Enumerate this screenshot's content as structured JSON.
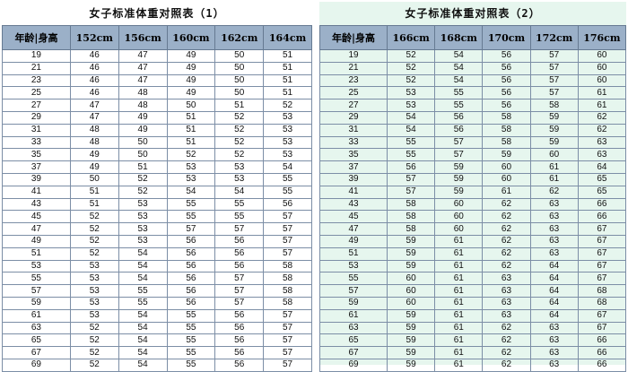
{
  "tables": [
    {
      "title": "女子标准体重对照表（1）",
      "header_age": "年龄|身高",
      "heights": [
        "152cm",
        "156cm",
        "160cm",
        "162cm",
        "164cm"
      ],
      "rows": [
        [
          "19",
          "46",
          "47",
          "49",
          "50",
          "51"
        ],
        [
          "21",
          "46",
          "47",
          "49",
          "50",
          "51"
        ],
        [
          "23",
          "46",
          "47",
          "49",
          "50",
          "51"
        ],
        [
          "25",
          "46",
          "48",
          "49",
          "50",
          "51"
        ],
        [
          "27",
          "47",
          "48",
          "50",
          "51",
          "52"
        ],
        [
          "29",
          "47",
          "49",
          "51",
          "52",
          "53"
        ],
        [
          "31",
          "48",
          "49",
          "51",
          "52",
          "53"
        ],
        [
          "33",
          "48",
          "50",
          "51",
          "52",
          "53"
        ],
        [
          "35",
          "49",
          "50",
          "52",
          "52",
          "53"
        ],
        [
          "37",
          "49",
          "51",
          "53",
          "53",
          "54"
        ],
        [
          "39",
          "50",
          "52",
          "53",
          "53",
          "55"
        ],
        [
          "41",
          "51",
          "52",
          "54",
          "54",
          "55"
        ],
        [
          "43",
          "51",
          "53",
          "55",
          "55",
          "56"
        ],
        [
          "45",
          "52",
          "53",
          "55",
          "55",
          "57"
        ],
        [
          "47",
          "52",
          "53",
          "57",
          "57",
          "57"
        ],
        [
          "49",
          "52",
          "53",
          "56",
          "56",
          "57"
        ],
        [
          "51",
          "52",
          "54",
          "56",
          "56",
          "57"
        ],
        [
          "53",
          "53",
          "54",
          "56",
          "56",
          "58"
        ],
        [
          "55",
          "53",
          "54",
          "56",
          "57",
          "58"
        ],
        [
          "57",
          "53",
          "55",
          "56",
          "57",
          "58"
        ],
        [
          "59",
          "53",
          "55",
          "56",
          "57",
          "58"
        ],
        [
          "61",
          "53",
          "54",
          "55",
          "56",
          "57"
        ],
        [
          "63",
          "52",
          "54",
          "55",
          "56",
          "57"
        ],
        [
          "65",
          "52",
          "54",
          "55",
          "56",
          "57"
        ],
        [
          "67",
          "52",
          "54",
          "55",
          "56",
          "57"
        ],
        [
          "69",
          "52",
          "54",
          "55",
          "56",
          "57"
        ]
      ]
    },
    {
      "title": "女子标准体重对照表（2）",
      "header_age": "年龄|身高",
      "heights": [
        "166cm",
        "168cm",
        "170cm",
        "172cm",
        "176cm"
      ],
      "rows": [
        [
          "19",
          "52",
          "54",
          "56",
          "57",
          "60"
        ],
        [
          "21",
          "52",
          "54",
          "56",
          "57",
          "60"
        ],
        [
          "23",
          "52",
          "54",
          "56",
          "57",
          "60"
        ],
        [
          "25",
          "53",
          "55",
          "56",
          "57",
          "61"
        ],
        [
          "27",
          "53",
          "55",
          "56",
          "58",
          "61"
        ],
        [
          "29",
          "54",
          "56",
          "58",
          "59",
          "62"
        ],
        [
          "31",
          "54",
          "56",
          "58",
          "59",
          "62"
        ],
        [
          "33",
          "55",
          "57",
          "58",
          "59",
          "63"
        ],
        [
          "35",
          "55",
          "57",
          "59",
          "60",
          "63"
        ],
        [
          "37",
          "56",
          "59",
          "60",
          "61",
          "64"
        ],
        [
          "39",
          "57",
          "59",
          "60",
          "61",
          "65"
        ],
        [
          "41",
          "57",
          "59",
          "61",
          "62",
          "65"
        ],
        [
          "43",
          "58",
          "60",
          "62",
          "63",
          "66"
        ],
        [
          "45",
          "58",
          "60",
          "62",
          "63",
          "66"
        ],
        [
          "47",
          "58",
          "60",
          "62",
          "63",
          "67"
        ],
        [
          "49",
          "59",
          "61",
          "62",
          "63",
          "67"
        ],
        [
          "51",
          "59",
          "61",
          "62",
          "63",
          "67"
        ],
        [
          "53",
          "59",
          "61",
          "62",
          "64",
          "67"
        ],
        [
          "55",
          "60",
          "61",
          "63",
          "64",
          "67"
        ],
        [
          "57",
          "60",
          "61",
          "63",
          "64",
          "68"
        ],
        [
          "59",
          "60",
          "61",
          "63",
          "64",
          "68"
        ],
        [
          "61",
          "59",
          "61",
          "63",
          "64",
          "67"
        ],
        [
          "63",
          "59",
          "61",
          "62",
          "63",
          "67"
        ],
        [
          "65",
          "59",
          "61",
          "62",
          "63",
          "66"
        ],
        [
          "67",
          "59",
          "61",
          "62",
          "63",
          "66"
        ],
        [
          "69",
          "59",
          "61",
          "62",
          "63",
          "66"
        ]
      ]
    }
  ]
}
